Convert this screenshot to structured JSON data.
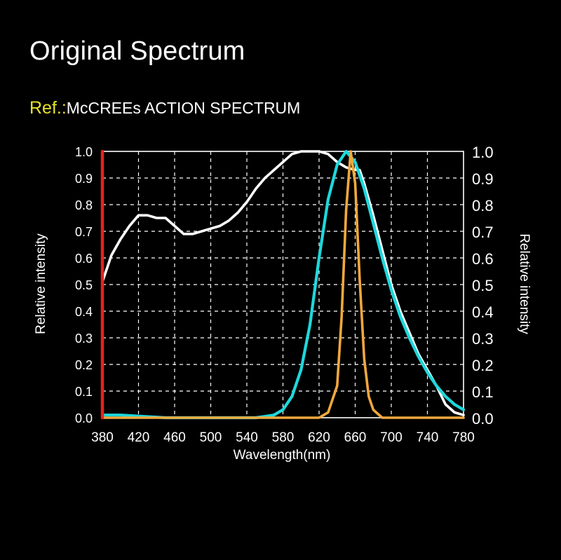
{
  "title": "Original Spectrum",
  "ref": {
    "prefix": "Ref.:",
    "text": "McCREEs ACTION SPECTRUM"
  },
  "colors": {
    "background": "#000000",
    "grid": "#ffffff",
    "ref_prefix": "#e8e22a",
    "mccree": "#ffffff",
    "cyan": "#1ed8dc",
    "orange": "#f2a83c",
    "red": "#e8231c"
  },
  "chart_data": {
    "type": "line",
    "xlabel": "Wavelength(nm)",
    "ylabel": "Relative intensity",
    "ylabel_right": "Relative intensity",
    "xlim": [
      380,
      780
    ],
    "ylim": [
      0,
      1
    ],
    "grid": true,
    "x_ticks": [
      "380",
      "420",
      "460",
      "500",
      "540",
      "580",
      "620",
      "660",
      "700",
      "740",
      "780"
    ],
    "y_ticks": [
      "0.0",
      "0.1",
      "0.2",
      "0.3",
      "0.4",
      "0.5",
      "0.6",
      "0.7",
      "0.8",
      "0.9",
      "1.0"
    ],
    "series": [
      {
        "color": "#ffffff",
        "x": [
          380,
          390,
          400,
          410,
          420,
          430,
          440,
          450,
          460,
          470,
          480,
          490,
          500,
          510,
          520,
          530,
          540,
          550,
          560,
          570,
          580,
          590,
          600,
          610,
          620,
          630,
          640,
          650,
          660,
          665,
          670,
          680,
          690,
          700,
          710,
          720,
          730,
          740,
          750,
          760,
          770,
          780
        ],
        "y": [
          0.51,
          0.61,
          0.67,
          0.72,
          0.76,
          0.76,
          0.75,
          0.75,
          0.72,
          0.69,
          0.69,
          0.7,
          0.71,
          0.72,
          0.74,
          0.77,
          0.81,
          0.86,
          0.9,
          0.93,
          0.96,
          0.99,
          1.0,
          1.0,
          1.0,
          0.99,
          0.96,
          0.94,
          0.93,
          0.93,
          0.88,
          0.76,
          0.63,
          0.5,
          0.4,
          0.32,
          0.24,
          0.18,
          0.12,
          0.05,
          0.02,
          0.01
        ]
      },
      {
        "color": "#1ed8dc",
        "x": [
          380,
          400,
          450,
          500,
          550,
          570,
          580,
          590,
          600,
          610,
          620,
          630,
          640,
          650,
          660,
          670,
          680,
          690,
          700,
          710,
          720,
          730,
          740,
          750,
          760,
          770,
          780
        ],
        "y": [
          0.01,
          0.01,
          0.0,
          0.0,
          0.0,
          0.01,
          0.03,
          0.08,
          0.18,
          0.35,
          0.6,
          0.82,
          0.95,
          1.0,
          0.96,
          0.86,
          0.73,
          0.6,
          0.48,
          0.38,
          0.3,
          0.23,
          0.17,
          0.12,
          0.08,
          0.05,
          0.03
        ]
      },
      {
        "color": "#f2a83c",
        "x": [
          380,
          600,
          620,
          630,
          640,
          645,
          650,
          655,
          660,
          665,
          670,
          675,
          680,
          690,
          700,
          780
        ],
        "y": [
          0.0,
          0.0,
          0.0,
          0.02,
          0.12,
          0.38,
          0.78,
          1.0,
          0.88,
          0.52,
          0.22,
          0.08,
          0.03,
          0.0,
          0.0,
          0.0
        ]
      },
      {
        "color": "#e8231c",
        "x": [
          380,
          380
        ],
        "y": [
          0,
          1
        ]
      }
    ]
  }
}
